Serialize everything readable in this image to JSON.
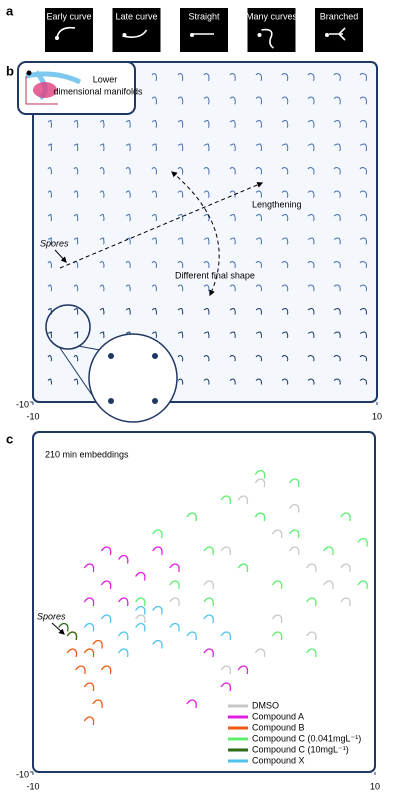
{
  "panel_labels": [
    "a",
    "b",
    "c"
  ],
  "thumbnails": [
    "Early curve",
    "Late curve",
    "Straight",
    "Many curves",
    "Branched"
  ],
  "chart_data": [
    {
      "type": "glyph-grid",
      "inset_label": [
        "Lower",
        "dimensional manifolds"
      ],
      "annotations": [
        "Spores",
        "Lengthening",
        "Different final shape"
      ],
      "xlim": [
        -10,
        10
      ],
      "ylim": [
        -10,
        10
      ],
      "xticks": [
        -10,
        10
      ],
      "yticks": [
        -10
      ]
    },
    {
      "type": "scatter",
      "title": "210 min embeddings",
      "annotation": "Spores",
      "xlim": [
        -10,
        10
      ],
      "ylim": [
        -10,
        10
      ],
      "xticks": [
        -10,
        10
      ],
      "yticks": [
        -10
      ],
      "series": [
        {
          "name": "DMSO",
          "color": "#c8c8c8",
          "x": [
            2,
            3,
            4,
            5,
            6,
            7,
            8,
            5,
            3,
            1,
            0,
            -2,
            4,
            6,
            3,
            1,
            8,
            -1,
            2,
            -4
          ],
          "y": [
            6,
            5,
            4,
            3,
            2,
            1,
            0,
            5.5,
            7,
            3,
            1,
            0,
            -1,
            -2,
            -3,
            -4,
            2,
            5,
            2,
            -1
          ]
        },
        {
          "name": "Compound A",
          "color": "#e020e0",
          "x": [
            -7,
            -6,
            -5,
            -6,
            -5,
            -4,
            -3,
            -2,
            -7,
            0,
            1,
            -1,
            2
          ],
          "y": [
            2,
            3,
            2.5,
            1,
            0,
            1.5,
            3,
            2,
            0,
            -3,
            -5,
            -6,
            -4
          ]
        },
        {
          "name": "Compound B",
          "color": "#f05a14",
          "x": [
            -8,
            -7,
            -7.5,
            -7,
            -6.5,
            -7,
            -6,
            -8,
            -6.5
          ],
          "y": [
            -2,
            -3,
            -4,
            -5,
            -6,
            -7,
            -4,
            -3,
            -2.5
          ]
        },
        {
          "name": "Compound C (0.041mgL⁻¹)",
          "color": "#5cf06e",
          "x": [
            -3,
            -1,
            1,
            3,
            5,
            7,
            9,
            0,
            2,
            4,
            6,
            -2,
            0,
            4,
            6,
            9,
            -4,
            3,
            5,
            8
          ],
          "y": [
            4,
            5,
            6,
            5,
            4,
            3,
            3.5,
            3,
            2,
            1,
            0,
            1,
            0,
            -2,
            -3,
            1,
            0,
            7.5,
            7,
            5
          ]
        },
        {
          "name": "Compound C (10mgL⁻¹)",
          "color": "#2a6e1a",
          "x": [
            -8.5,
            -8
          ],
          "y": [
            -1.5,
            -2
          ]
        },
        {
          "name": "Compound X",
          "color": "#4ec3f0",
          "x": [
            -7,
            -6,
            -5,
            -4,
            -3,
            -2,
            -1,
            -5,
            -4,
            0,
            -3,
            1
          ],
          "y": [
            -1.5,
            -1,
            -2,
            -1.5,
            -2.5,
            -1.5,
            -2,
            -3,
            -0.5,
            -1,
            -0.5,
            -2
          ]
        }
      ]
    }
  ]
}
